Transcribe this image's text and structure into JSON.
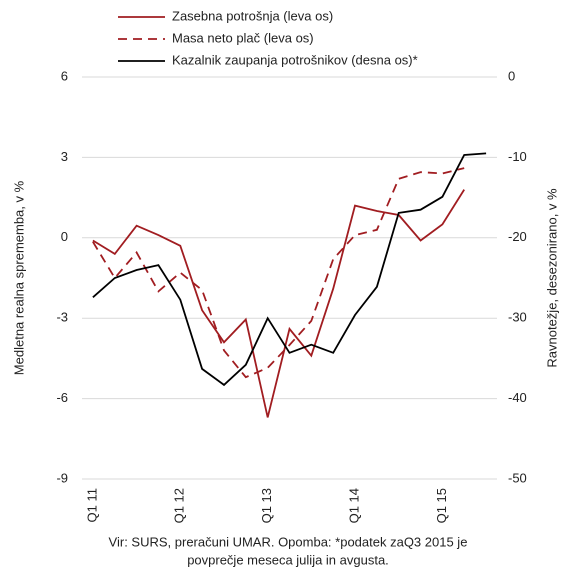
{
  "chart_data": {
    "type": "line",
    "categories": [
      "Q1 11",
      null,
      null,
      null,
      "Q1 12",
      null,
      null,
      null,
      "Q1 13",
      null,
      null,
      null,
      "Q1 14",
      null,
      null,
      null,
      "Q1 15",
      null,
      null
    ],
    "series": [
      {
        "name": "Zasebna potrošnja (leva os)",
        "color": "#a11d21",
        "dash": false,
        "values": [
          -0.1,
          -0.6,
          0.45,
          0.1,
          -0.3,
          -2.7,
          -3.9,
          -3.05,
          -6.7,
          -3.4,
          -4.4,
          -1.9,
          1.2,
          1.0,
          0.85,
          -0.1,
          0.5,
          1.8,
          null
        ]
      },
      {
        "name": "Masa neto plač (leva os)",
        "color": "#a11d21",
        "dash": true,
        "values": [
          -0.15,
          -1.5,
          -0.55,
          -2.0,
          -1.3,
          -1.95,
          -4.2,
          -5.2,
          -4.85,
          -4.0,
          -3.1,
          -0.8,
          0.1,
          0.3,
          2.2,
          2.45,
          2.4,
          2.6,
          null
        ]
      },
      {
        "name": "Kazalnik zaupanja potrošnikov (desna os)*",
        "color": "#000000",
        "dash": false,
        "axis": "y2",
        "values": [
          -27.4,
          -25,
          -24,
          -23.4,
          -27.7,
          -36.3,
          -38.3,
          -35.8,
          -30,
          -34.3,
          -33.3,
          -34.3,
          -29.6,
          -26.1,
          -16.9,
          -16.5,
          -14.9,
          -9.7,
          -9.5
        ]
      }
    ],
    "ylabel": "Medletna realna sprememba, v %",
    "y2label": "Ravnotežje, desezonirano, v %",
    "ylim": [
      -9,
      6
    ],
    "yticks": [
      -9,
      -6,
      -3,
      0,
      3,
      6
    ],
    "y2lim": [
      -50,
      0
    ],
    "y2ticks": [
      -50,
      -40,
      -30,
      -20,
      -10,
      0
    ],
    "grid": true,
    "legend": "top",
    "note": [
      "Vir: SURS, preračuni UMAR. Opomba: *podatek zaQ3 2015 je",
      "povprečje meseca julija in avgusta."
    ]
  }
}
